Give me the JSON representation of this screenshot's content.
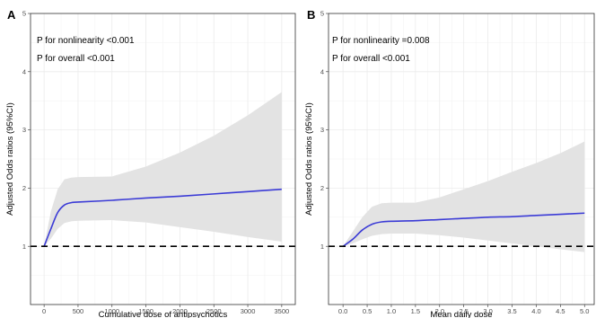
{
  "chart_data": [
    {
      "type": "line",
      "panel_label": "A",
      "xlabel": "Cumulative dose of antipsychotics",
      "ylabel": "Adjusted Odds ratios (95%CI)",
      "xlim": [
        -200,
        3700
      ],
      "ylim": [
        0,
        5
      ],
      "x_ticks": [
        0,
        500,
        1000,
        1500,
        2000,
        2500,
        3000,
        3500
      ],
      "x_tick_labels": [
        "0",
        "500",
        "1000",
        "1500",
        "2000",
        "2500",
        "3000",
        "3500"
      ],
      "y_ticks": [
        1,
        2,
        3,
        4,
        5
      ],
      "y_tick_labels": [
        "1",
        "2",
        "3",
        "4",
        "5"
      ],
      "reference_line": 1,
      "grid": true,
      "annotations": [
        "P for nonlinearity <0.001",
        "P for overall <0.001"
      ],
      "colors": {
        "line": "#3b3bd6",
        "band": "#e3e3e3",
        "reference": "#000000"
      },
      "series": [
        {
          "x": [
            0,
            100,
            200,
            300,
            400,
            500,
            1000,
            1500,
            2000,
            2500,
            3000,
            3500
          ],
          "values": [
            1.0,
            1.3,
            1.58,
            1.71,
            1.75,
            1.76,
            1.79,
            1.83,
            1.86,
            1.9,
            1.94,
            1.98
          ],
          "lower": [
            1.0,
            1.13,
            1.3,
            1.4,
            1.43,
            1.44,
            1.45,
            1.41,
            1.33,
            1.25,
            1.16,
            1.08
          ],
          "upper": [
            1.0,
            1.6,
            1.98,
            2.15,
            2.18,
            2.19,
            2.2,
            2.37,
            2.61,
            2.9,
            3.25,
            3.65
          ]
        }
      ]
    },
    {
      "type": "line",
      "panel_label": "B",
      "xlabel": "Mean daily dose",
      "ylabel": "Adjusted Odds ratios (95%CI)",
      "xlim": [
        -0.3,
        5.2
      ],
      "ylim": [
        0,
        5
      ],
      "x_ticks": [
        0,
        0.5,
        1,
        1.5,
        2,
        2.5,
        3,
        3.5,
        4,
        4.5,
        5
      ],
      "x_tick_labels": [
        "0.0",
        "0.5",
        "1.0",
        "1.5",
        "2.0",
        "2.5",
        "3.0",
        "3.5",
        "4.0",
        "4.5",
        "5.0"
      ],
      "y_ticks": [
        1,
        2,
        3,
        4,
        5
      ],
      "y_tick_labels": [
        "1",
        "2",
        "3",
        "4",
        "5"
      ],
      "reference_line": 1,
      "grid": true,
      "annotations": [
        "P for nonlinearity =0.008",
        "P for overall <0.001"
      ],
      "colors": {
        "line": "#3b3bd6",
        "band": "#e3e3e3",
        "reference": "#000000"
      },
      "series": [
        {
          "x": [
            0,
            0.2,
            0.4,
            0.6,
            0.8,
            1.0,
            1.5,
            2.0,
            2.5,
            3.0,
            3.5,
            4.0,
            4.5,
            5.0
          ],
          "values": [
            1.0,
            1.12,
            1.28,
            1.38,
            1.42,
            1.43,
            1.44,
            1.46,
            1.48,
            1.5,
            1.51,
            1.53,
            1.55,
            1.57
          ],
          "lower": [
            1.0,
            1.05,
            1.12,
            1.18,
            1.21,
            1.22,
            1.22,
            1.19,
            1.15,
            1.1,
            1.05,
            1.0,
            0.95,
            0.9
          ],
          "upper": [
            1.0,
            1.25,
            1.5,
            1.68,
            1.74,
            1.75,
            1.75,
            1.84,
            1.98,
            2.12,
            2.28,
            2.43,
            2.6,
            2.8
          ]
        }
      ]
    }
  ]
}
